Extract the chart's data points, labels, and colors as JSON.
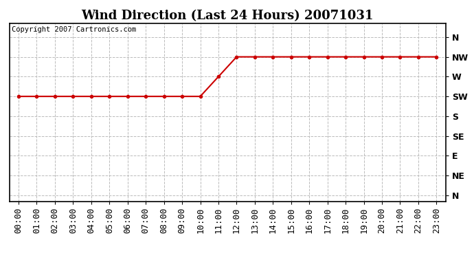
{
  "title": "Wind Direction (Last 24 Hours) 20071031",
  "copyright_text": "Copyright 2007 Cartronics.com",
  "x_labels": [
    "00:00",
    "01:00",
    "02:00",
    "03:00",
    "04:00",
    "05:00",
    "06:00",
    "07:00",
    "08:00",
    "09:00",
    "10:00",
    "11:00",
    "12:00",
    "13:00",
    "14:00",
    "15:00",
    "16:00",
    "17:00",
    "18:00",
    "19:00",
    "20:00",
    "21:00",
    "22:00",
    "23:00"
  ],
  "y_tick_labels": [
    "N",
    "NW",
    "W",
    "SW",
    "S",
    "SE",
    "E",
    "NE",
    "N"
  ],
  "y_tick_values": [
    8,
    7,
    6,
    5,
    4,
    3,
    2,
    1,
    0
  ],
  "data_values": [
    5,
    5,
    5,
    5,
    5,
    5,
    5,
    5,
    5,
    5,
    5,
    6,
    7,
    7,
    7,
    7,
    7,
    7,
    7,
    7,
    7,
    7,
    7,
    7
  ],
  "line_color": "#cc0000",
  "marker": "o",
  "marker_size": 3,
  "marker_linewidth": 1.0,
  "line_width": 1.5,
  "bg_color": "#ffffff",
  "plot_bg_color": "#ffffff",
  "grid_color": "#bbbbbb",
  "grid_linestyle": "--",
  "title_fontsize": 13,
  "copyright_fontsize": 7.5,
  "axis_fontsize": 9,
  "ylim": [
    -0.3,
    8.7
  ],
  "xlim": [
    -0.5,
    23.5
  ]
}
